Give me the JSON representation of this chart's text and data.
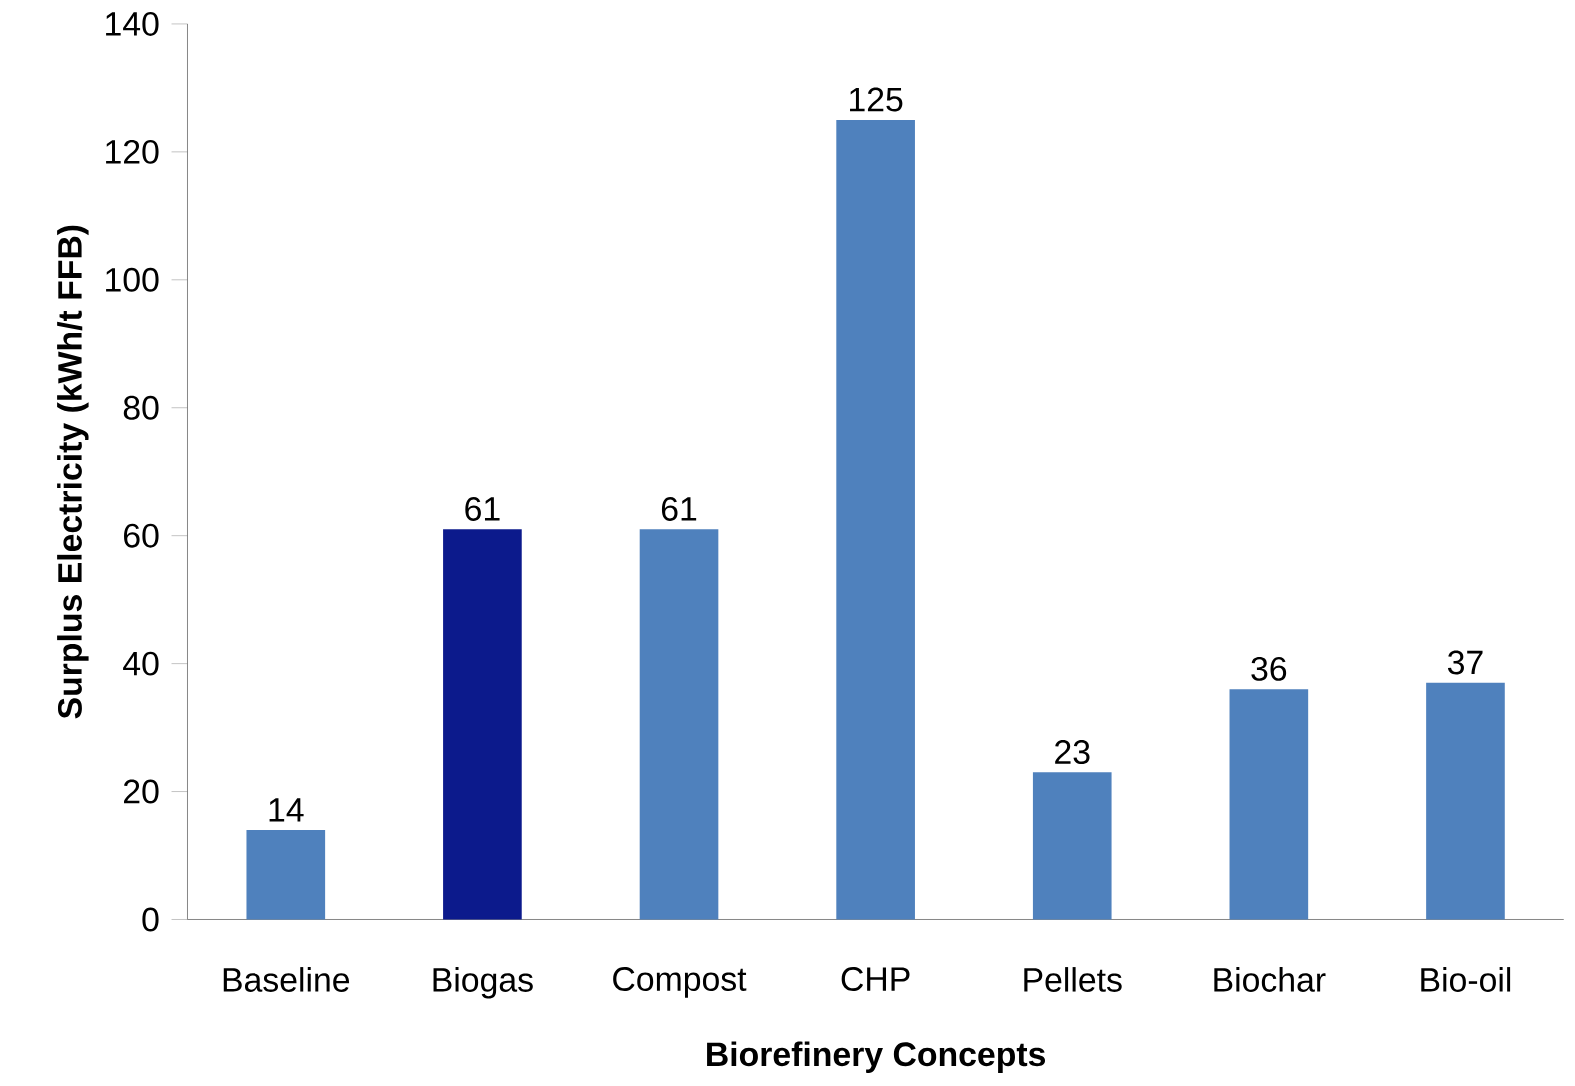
{
  "chart_data": {
    "type": "bar",
    "xlabel": "Biorefinery Concepts",
    "ylabel": "Surplus Electricity  (kWh/t FFB)",
    "categories": [
      "Baseline",
      "Biogas",
      "Compost",
      "CHP",
      "Pellets",
      "Biochar",
      "Bio-oil"
    ],
    "values": [
      14,
      61,
      61,
      125,
      23,
      36,
      37
    ],
    "colors": [
      "#4f81bd",
      "#0c1a8c",
      "#4f81bd",
      "#4f81bd",
      "#4f81bd",
      "#4f81bd",
      "#4f81bd"
    ],
    "ylim": [
      0,
      140
    ],
    "yticks": [
      0,
      20,
      40,
      60,
      80,
      100,
      120,
      140
    ],
    "data_labels": true,
    "grid": false
  }
}
